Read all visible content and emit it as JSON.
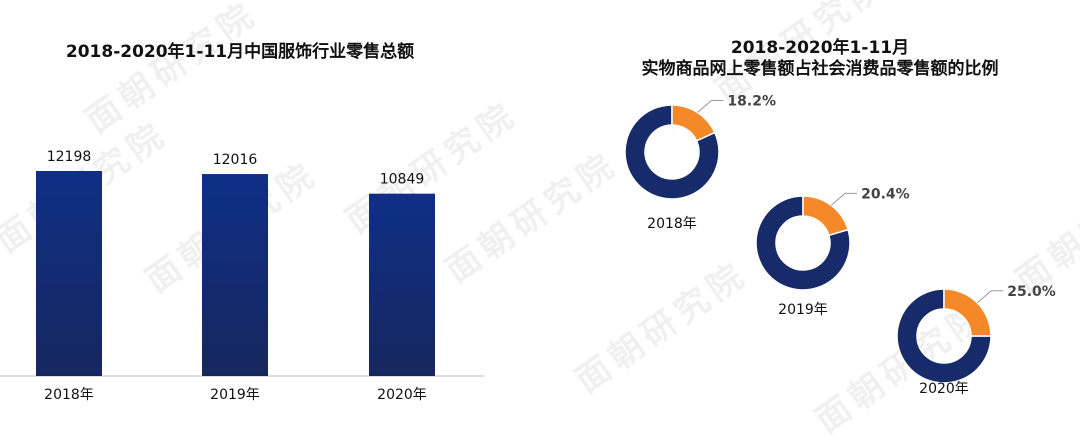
{
  "watermark_text": "面朝研究院",
  "chart_data": [
    {
      "type": "bar",
      "title": "2018-2020年1-11月中国服饰行业零售总额",
      "categories": [
        "2018年",
        "2019年",
        "2020年"
      ],
      "values": [
        12198,
        12016,
        10849
      ],
      "ylim": [
        0,
        12198
      ],
      "grid": false,
      "bar_color_top": "#0f2f86",
      "bar_color_bottom": "#17275e"
    },
    {
      "type": "pie",
      "title_line1": "2018-2020年1-11月",
      "title_line2": "实物商品网上零售额占社会消费品零售额的比例",
      "items": [
        {
          "label": "2018年",
          "value": 18.2,
          "display": "18.2%"
        },
        {
          "label": "2019年",
          "value": 20.4,
          "display": "20.4%"
        },
        {
          "label": "2020年",
          "value": 25.0,
          "display": "25.0%"
        }
      ],
      "colors": {
        "highlight": "#f5892a",
        "rest": "#172a6a"
      }
    }
  ]
}
